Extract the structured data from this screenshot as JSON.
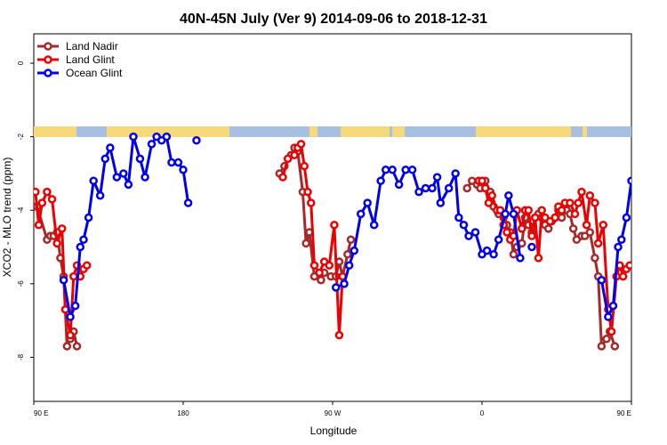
{
  "chart_data": {
    "type": "line",
    "title": "40N-45N July (Ver 9)   2014-09-06 to 2018-12-31",
    "xlabel": "Longitude",
    "ylabel": "XCO2 - MLO trend (ppm)",
    "xlim": [
      90,
      450
    ],
    "ylim": [
      -9.2,
      0.8
    ],
    "x_ticks": [
      {
        "value": 90,
        "label": "90 E"
      },
      {
        "value": 180,
        "label": "180"
      },
      {
        "value": 270,
        "label": "90 W"
      },
      {
        "value": 360,
        "label": "0"
      },
      {
        "value": 450,
        "label": "90 E"
      },
      {
        "value": 540,
        "label": "180"
      }
    ],
    "y_ticks": [
      {
        "value": 0,
        "label": "0"
      },
      {
        "value": -2,
        "label": "-2"
      },
      {
        "value": -4,
        "label": "-4"
      },
      {
        "value": -6,
        "label": "-6"
      },
      {
        "value": -8,
        "label": "-8"
      }
    ],
    "legend_position": "top-left",
    "grid": false,
    "series": [
      {
        "name": "Land Nadir",
        "color": "#a52a2a",
        "segments": [
          [
            [
              90,
              -3.9
            ],
            [
              92,
              -3.9
            ],
            [
              98,
              -4.8
            ],
            [
              100,
              -4.7
            ],
            [
              102,
              -4.7
            ],
            [
              104,
              -4.6
            ],
            [
              106,
              -5.3
            ],
            [
              108,
              -5.8
            ],
            [
              110,
              -7.7
            ],
            [
              112,
              -7.5
            ],
            [
              114,
              -7.3
            ],
            [
              116,
              -7.7
            ]
          ],
          [
            [
              238,
              -3.0
            ],
            [
              241,
              -2.8
            ],
            [
              245,
              -2.5
            ],
            [
              247,
              -2.3
            ],
            [
              249,
              -2.4
            ],
            [
              252,
              -3.5
            ],
            [
              254,
              -4.9
            ],
            [
              256,
              -4.6
            ],
            [
              259,
              -5.8
            ],
            [
              263,
              -5.9
            ],
            [
              265,
              -5.7
            ],
            [
              269,
              -5.8
            ],
            [
              272,
              -5.8
            ],
            [
              274,
              -5.4
            ],
            [
              276,
              -5.8
            ],
            [
              279,
              -5.2
            ],
            [
              281,
              -4.8
            ]
          ],
          [
            [
              351,
              -3.4
            ],
            [
              354,
              -3.2
            ],
            [
              357,
              -3.3
            ],
            [
              359,
              -3.4
            ],
            [
              362,
              -3.2
            ],
            [
              365,
              -3.5
            ],
            [
              367,
              -3.9
            ],
            [
              370,
              -4.1
            ],
            [
              373,
              -4.2
            ],
            [
              375,
              -4.4
            ],
            [
              377,
              -4.6
            ],
            [
              379,
              -5.2
            ],
            [
              381,
              -5.0
            ],
            [
              384,
              -4.9
            ],
            [
              386,
              -4.2
            ],
            [
              388,
              -4.4
            ],
            [
              390,
              -4.6
            ],
            [
              392,
              -4.2
            ],
            [
              394,
              -4.1
            ],
            [
              396,
              -4.2
            ],
            [
              398,
              -4.4
            ],
            [
              400,
              -4.5
            ],
            [
              402,
              -4.3
            ],
            [
              404,
              -4.2
            ],
            [
              406,
              -4.0
            ],
            [
              408,
              -4.2
            ],
            [
              411,
              -4.0
            ],
            [
              413,
              -4.1
            ],
            [
              415,
              -4.5
            ],
            [
              417,
              -4.8
            ],
            [
              420,
              -4.7
            ],
            [
              422,
              -4.7
            ],
            [
              425,
              -4.6
            ],
            [
              428,
              -5.3
            ],
            [
              430,
              -5.8
            ],
            [
              432,
              -7.7
            ],
            [
              435,
              -7.5
            ],
            [
              437,
              -7.3
            ],
            [
              440,
              -7.7
            ]
          ]
        ]
      },
      {
        "name": "Land Glint",
        "color": "#ee0000",
        "segments": [
          [
            [
              91,
              -3.5
            ],
            [
              93,
              -4.4
            ],
            [
              95,
              -3.8
            ],
            [
              98,
              -3.5
            ],
            [
              101,
              -3.7
            ],
            [
              104,
              -4.9
            ],
            [
              107,
              -4.5
            ],
            [
              109,
              -6.7
            ],
            [
              112,
              -7.4
            ],
            [
              114,
              -5.8
            ],
            [
              116,
              -5.5
            ],
            [
              118,
              -5.8
            ],
            [
              120,
              -5.6
            ],
            [
              122,
              -5.5
            ]
          ],
          [
            [
              240,
              -3.1
            ],
            [
              243,
              -2.6
            ],
            [
              247,
              -2.5
            ],
            [
              249,
              -2.3
            ],
            [
              251,
              -2.2
            ],
            [
              253,
              -2.8
            ],
            [
              255,
              -3.5
            ],
            [
              257,
              -3.8
            ],
            [
              259,
              -5.5
            ],
            [
              262,
              -5.7
            ],
            [
              265,
              -5.4
            ],
            [
              268,
              -5.5
            ],
            [
              271,
              -4.4
            ],
            [
              274,
              -7.4
            ],
            [
              276,
              -5.8
            ]
          ],
          [
            [
              358,
              -3.2
            ],
            [
              360,
              -3.2
            ],
            [
              362,
              -3.4
            ],
            [
              364,
              -3.8
            ],
            [
              366,
              -3.6
            ],
            [
              369,
              -4.0
            ],
            [
              371,
              -4.0
            ],
            [
              373,
              -4.4
            ],
            [
              375,
              -4.6
            ],
            [
              377,
              -4.8
            ],
            [
              379,
              -4.7
            ],
            [
              381,
              -4.0
            ],
            [
              384,
              -4.5
            ],
            [
              386,
              -4.0
            ],
            [
              388,
              -4.0
            ],
            [
              390,
              -4.7
            ],
            [
              392,
              -4.2
            ],
            [
              394,
              -5.3
            ],
            [
              396,
              -4.0
            ],
            [
              398,
              -4.2
            ],
            [
              401,
              -4.3
            ],
            [
              404,
              -4.2
            ],
            [
              406,
              -3.9
            ],
            [
              408,
              -4.0
            ],
            [
              410,
              -3.8
            ],
            [
              413,
              -3.8
            ],
            [
              416,
              -4.1
            ],
            [
              418,
              -3.8
            ],
            [
              420,
              -3.5
            ],
            [
              423,
              -4.4
            ],
            [
              425,
              -3.6
            ],
            [
              428,
              -3.8
            ],
            [
              430,
              -4.9
            ],
            [
              433,
              -4.4
            ],
            [
              436,
              -6.7
            ],
            [
              438,
              -7.3
            ],
            [
              441,
              -5.8
            ],
            [
              443,
              -5.5
            ],
            [
              445,
              -5.8
            ],
            [
              447,
              -5.6
            ],
            [
              449,
              -5.5
            ]
          ]
        ]
      },
      {
        "name": "Ocean Glint",
        "color": "#0000ee",
        "segments": [
          [
            [
              108,
              -5.9
            ],
            [
              112,
              -6.9
            ],
            [
              115,
              -6.6
            ],
            [
              118,
              -5.0
            ],
            [
              120,
              -4.8
            ],
            [
              123,
              -4.2
            ],
            [
              126,
              -3.2
            ],
            [
              130,
              -3.6
            ],
            [
              133,
              -2.6
            ],
            [
              136,
              -2.3
            ],
            [
              140,
              -3.1
            ],
            [
              144,
              -3.0
            ],
            [
              147,
              -3.3
            ],
            [
              150,
              -2.0
            ],
            [
              154,
              -2.6
            ],
            [
              157,
              -3.1
            ],
            [
              161,
              -2.2
            ],
            [
              164,
              -2.0
            ],
            [
              167,
              -2.1
            ],
            [
              170,
              -2.0
            ],
            [
              173,
              -2.7
            ],
            [
              177,
              -2.7
            ],
            [
              180,
              -2.9
            ],
            [
              183,
              -3.8
            ]
          ],
          [
            [
              188,
              -2.1
            ]
          ],
          [
            [
              272,
              -6.1
            ],
            [
              277,
              -6.0
            ],
            [
              280,
              -5.5
            ],
            [
              283,
              -5.1
            ],
            [
              287,
              -4.1
            ],
            [
              291,
              -3.8
            ],
            [
              295,
              -4.4
            ],
            [
              299,
              -3.2
            ],
            [
              302,
              -2.9
            ],
            [
              306,
              -2.9
            ],
            [
              310,
              -3.3
            ],
            [
              314,
              -2.9
            ],
            [
              318,
              -2.9
            ],
            [
              322,
              -3.5
            ],
            [
              326,
              -3.4
            ],
            [
              330,
              -3.4
            ],
            [
              333,
              -3.1
            ],
            [
              335,
              -3.8
            ],
            [
              340,
              -3.4
            ],
            [
              344,
              -3.0
            ],
            [
              346,
              -4.2
            ],
            [
              349,
              -4.4
            ],
            [
              352,
              -4.7
            ],
            [
              356,
              -4.6
            ],
            [
              360,
              -5.2
            ],
            [
              363,
              -5.1
            ],
            [
              367,
              -5.2
            ],
            [
              370,
              -4.8
            ],
            [
              374,
              -4.1
            ],
            [
              376,
              -3.6
            ],
            [
              379,
              -4.1
            ],
            [
              383,
              -5.3
            ]
          ],
          [
            [
              390,
              -5.0
            ]
          ],
          [
            [
              432,
              -5.9
            ],
            [
              436,
              -6.9
            ],
            [
              439,
              -6.6
            ],
            [
              442,
              -5.0
            ],
            [
              444,
              -4.8
            ],
            [
              447,
              -4.2
            ],
            [
              450,
              -3.2
            ],
            [
              454,
              -3.6
            ],
            [
              457,
              -2.6
            ],
            [
              460,
              -2.3
            ],
            [
              464,
              -3.1
            ],
            [
              468,
              -3.0
            ]
          ]
        ]
      }
    ]
  }
}
